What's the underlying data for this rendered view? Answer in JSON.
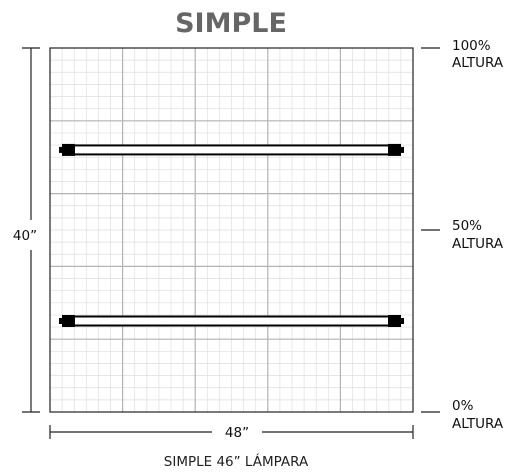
{
  "title": "SIMPLE",
  "caption": "SIMPLE 46” LÁMPARA",
  "dimensions": {
    "height": "40”",
    "width": "48”"
  },
  "height_markers": [
    {
      "pct": "100%",
      "label": "ALTURA"
    },
    {
      "pct": "50%",
      "label": "ALTURA"
    },
    {
      "pct": "0%",
      "label": "ALTURA"
    }
  ],
  "lamp_levels": [
    0.72,
    0.25
  ],
  "grid": {
    "major_divisions": 5,
    "minor_per_major": 6
  },
  "colors": {
    "title": "#666666",
    "grid_major": "#b3b3b3",
    "grid_minor": "#dedede",
    "frame": "#222222",
    "lamp": "#000000"
  }
}
